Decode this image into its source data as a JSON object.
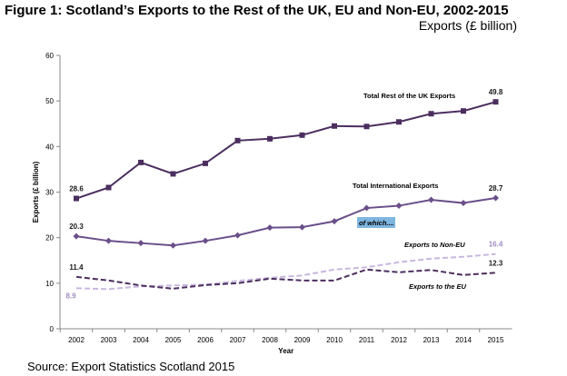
{
  "header": {
    "title": "Figure 1: Scotland’s Exports to the Rest of the UK, EU and Non-EU, 2002-2015",
    "subtitle": "Exports (£ billion)"
  },
  "footer": {
    "source": "Source: Export Statistics Scotland 2015"
  },
  "chart_data": {
    "type": "line",
    "title": "Figure 1: Scotland’s Exports to the Rest of the UK, EU and Non-EU, 2002-2015",
    "subtitle": "Exports (£ billion)",
    "xlabel": "Year",
    "ylabel": "Exports (£ billion)",
    "ylim": [
      0,
      60
    ],
    "yticks": [
      0,
      10,
      20,
      30,
      40,
      50,
      60
    ],
    "x": [
      "2002",
      "2003",
      "2004",
      "2005",
      "2006",
      "2007",
      "2008",
      "2009",
      "2010",
      "2011",
      "2012",
      "2013",
      "2014",
      "2015"
    ],
    "grid": false,
    "annotation": "of which....",
    "series": [
      {
        "name": "Total Rest of the UK Exports",
        "color": "#4b2e5e",
        "style": "solid",
        "marker": "square",
        "values": [
          28.6,
          31.0,
          36.5,
          34.0,
          36.3,
          41.3,
          41.7,
          42.5,
          44.5,
          44.4,
          45.4,
          47.2,
          47.8,
          49.8
        ],
        "labels": {
          "first": "28.6",
          "last": "49.8"
        }
      },
      {
        "name": "Total International Exports",
        "color": "#6a4f8a",
        "style": "solid",
        "marker": "diamond",
        "values": [
          20.3,
          19.3,
          18.8,
          18.3,
          19.3,
          20.5,
          22.2,
          22.3,
          23.6,
          26.5,
          27.0,
          28.3,
          27.6,
          28.7
        ],
        "labels": {
          "first": "20.3",
          "last": "28.7"
        }
      },
      {
        "name": "Exports to Non-EU",
        "color": "#c8b8de",
        "style": "dashed",
        "marker": "none",
        "values": [
          8.9,
          8.7,
          9.3,
          9.5,
          9.7,
          10.5,
          11.2,
          11.7,
          13.0,
          13.5,
          14.6,
          15.4,
          15.8,
          16.4
        ],
        "labels": {
          "first": "8.9",
          "last": "16.4"
        }
      },
      {
        "name": "Exports to the EU",
        "color": "#4b2e5e",
        "style": "dashed",
        "marker": "none",
        "values": [
          11.4,
          10.6,
          9.5,
          8.8,
          9.6,
          10.0,
          11.0,
          10.6,
          10.6,
          13.0,
          12.4,
          12.9,
          11.8,
          12.3
        ],
        "labels": {
          "first": "11.4",
          "last": "12.3"
        }
      }
    ]
  }
}
